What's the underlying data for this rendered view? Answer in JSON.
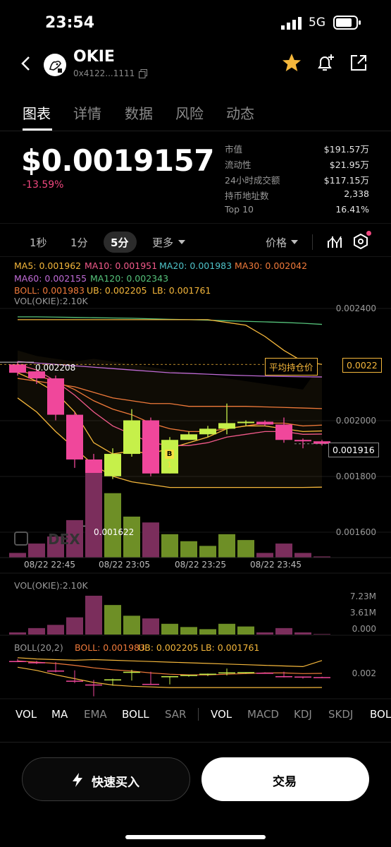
{
  "status": {
    "time": "23:54",
    "network": "5G"
  },
  "header": {
    "name": "OKIE",
    "address": "0x4122...1111"
  },
  "tabs": [
    "图表",
    "详情",
    "数据",
    "风险",
    "动态"
  ],
  "price": {
    "value": "$0.0019157",
    "change": "-13.59%"
  },
  "stats": [
    {
      "label": "市值",
      "value": "$191.57万"
    },
    {
      "label": "流动性",
      "value": "$21.95万"
    },
    {
      "label": "24小时成交额",
      "value": "$117.15万"
    },
    {
      "label": "持币地址数",
      "value": "2,338"
    },
    {
      "label": "Top 10",
      "value": "16.41%"
    }
  ],
  "intervals": {
    "i1": "1秒",
    "i2": "1分",
    "i3": "5分",
    "more": "更多",
    "price_toggle": "价格"
  },
  "legend": {
    "ma5": "MA5: 0.001962",
    "ma10": "MA10: 0.001951",
    "ma20": "MA20: 0.001983",
    "ma30": "MA30: 0.002042",
    "ma60": "MA60: 0.002155",
    "ma120": "MA120: 0.002343",
    "boll": "BOLL: 0.001983",
    "ub": "UB: 0.002205",
    "lb": "LB: 0.001761",
    "vol": "VOL(OKIE):2.10K"
  },
  "colors": {
    "up": "#c6f04a",
    "down": "#f0479b",
    "vol_up": "#6e8f26",
    "vol_down": "#7b2e5c",
    "ma5": "#f5b73b",
    "ma10": "#f25a8a",
    "ma20": "#4fc3c9",
    "ma30": "#f07a3a",
    "ma60": "#c06bd6",
    "ma120": "#55c27a",
    "boll": "#f07a3a",
    "ub": "#f5b73b",
    "lb": "#f5b73b"
  },
  "price_axis": [
    "0.002400",
    "0.002000",
    "0.001800",
    "0.001600"
  ],
  "avg_cost_label": "平均持仓价",
  "avg_cost_value": "0.0022",
  "current_price_tag": "0.001916",
  "high_marker": "0.002208",
  "low_marker": "0.001622",
  "watermark": "DEX",
  "buy_marker": "B",
  "buy_count": "1",
  "time_axis": [
    "08/22 22:45",
    "08/22 23:05",
    "08/22 23:25",
    "08/22 23:45"
  ],
  "vol_pane": {
    "title": "VOL(OKIE):2.10K",
    "axis": [
      "7.23M",
      "3.61M",
      "0.000"
    ]
  },
  "boll_pane": {
    "title": "BOLL(20,2)",
    "boll": "BOLL: 0.001983",
    "ub": "UB: 0.002205",
    "lb": "LB: 0.001761",
    "axis": "0.002"
  },
  "indicators": [
    "VOL",
    "MA",
    "EMA",
    "BOLL",
    "SAR",
    "VOL",
    "MACD",
    "KDJ",
    "SKDJ",
    "BOL"
  ],
  "buttons": {
    "quick_buy": "快速买入",
    "trade": "交易"
  },
  "chart_data": {
    "type": "candlestick",
    "x": [
      "08/22 22:45",
      "08/22 23:05",
      "08/22 23:25",
      "08/22 23:45"
    ],
    "candles": [
      {
        "o": 0.0022,
        "h": 0.00221,
        "c": 0.00217,
        "l": 0.00216
      },
      {
        "o": 0.002175,
        "h": 0.00218,
        "c": 0.00215,
        "l": 0.00213
      },
      {
        "o": 0.00215,
        "h": 0.00216,
        "c": 0.00202,
        "l": 0.002
      },
      {
        "o": 0.00202,
        "h": 0.00203,
        "c": 0.00186,
        "l": 0.00183
      },
      {
        "o": 0.00186,
        "h": 0.00188,
        "c": 0.0018,
        "l": 0.001622
      },
      {
        "o": 0.0018,
        "h": 0.0019,
        "c": 0.00188,
        "l": 0.00179
      },
      {
        "o": 0.00188,
        "h": 0.00204,
        "c": 0.002,
        "l": 0.00187
      },
      {
        "o": 0.002,
        "h": 0.00201,
        "c": 0.00181,
        "l": 0.0018
      },
      {
        "o": 0.00181,
        "h": 0.00194,
        "c": 0.00193,
        "l": 0.00181
      },
      {
        "o": 0.00193,
        "h": 0.00196,
        "c": 0.00195,
        "l": 0.00193
      },
      {
        "o": 0.00195,
        "h": 0.00198,
        "c": 0.00197,
        "l": 0.00194
      },
      {
        "o": 0.00197,
        "h": 0.00206,
        "c": 0.00199,
        "l": 0.00195
      },
      {
        "o": 0.00199,
        "h": 0.002,
        "c": 0.001995,
        "l": 0.00198
      },
      {
        "o": 0.001995,
        "h": 0.002,
        "c": 0.001985,
        "l": 0.00198
      },
      {
        "o": 0.001985,
        "h": 0.00201,
        "c": 0.00193,
        "l": 0.00192
      },
      {
        "o": 0.00193,
        "h": 0.001935,
        "c": 0.001925,
        "l": 0.0019
      },
      {
        "o": 0.001925,
        "h": 0.00193,
        "c": 0.001916,
        "l": 0.00191
      }
    ],
    "volume_M": [
      0.4,
      1.2,
      1.8,
      3.2,
      7.23,
      5.5,
      3.5,
      3.0,
      2.0,
      1.4,
      1.0,
      2.0,
      1.5,
      0.4,
      1.2,
      0.4,
      0.1
    ],
    "ylim": [
      0.00156,
      0.00246
    ]
  }
}
